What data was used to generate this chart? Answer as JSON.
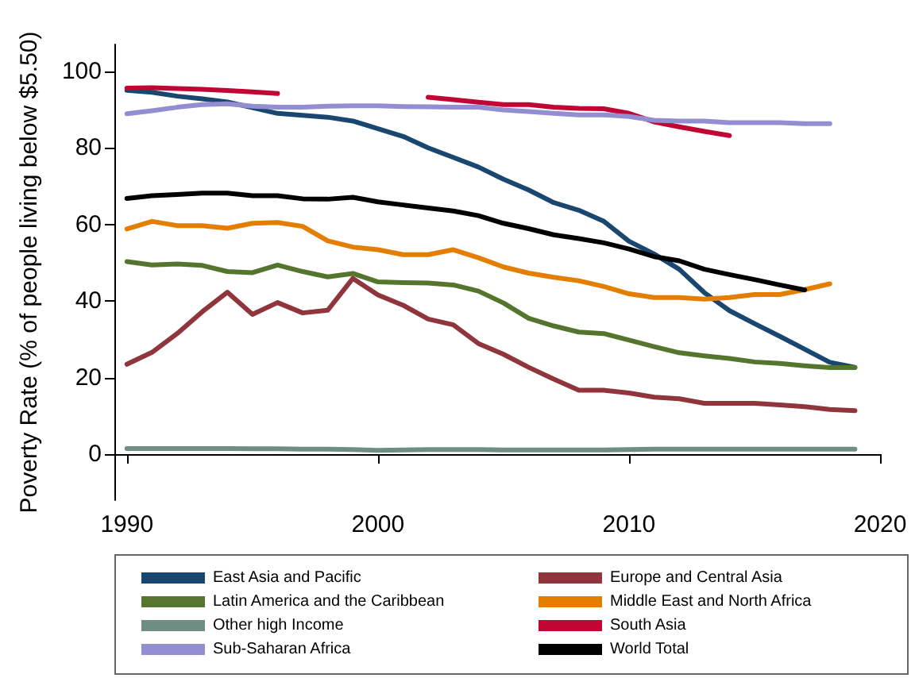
{
  "chart_data": {
    "type": "line",
    "ylabel": "Poverty Rate (% of people living below $5.50)",
    "x": [
      1990,
      1991,
      1992,
      1993,
      1994,
      1995,
      1996,
      1997,
      1998,
      1999,
      2000,
      2001,
      2002,
      2003,
      2004,
      2005,
      2006,
      2007,
      2008,
      2009,
      2010,
      2011,
      2012,
      2013,
      2014,
      2015,
      2016,
      2017,
      2018,
      2019
    ],
    "xlim": [
      1989.5,
      2020
    ],
    "xticks": [
      1990,
      2000,
      2010,
      2020
    ],
    "ylim": [
      -12,
      107
    ],
    "yticks": [
      0,
      20,
      40,
      60,
      80,
      100
    ],
    "grid": false,
    "legend": "bottom",
    "marker": "none",
    "line_style": "solid",
    "series": [
      {
        "name": "East Asia and Pacific",
        "color": "#1a476f",
        "values": [
          95,
          94.5,
          93.5,
          92.8,
          92,
          90.5,
          89,
          88.5,
          88,
          87,
          85,
          83,
          80,
          77.5,
          75,
          71.8,
          69,
          65.7,
          63.7,
          60.8,
          55.6,
          52.3,
          48.3,
          42.2,
          37.5,
          34.1,
          30.8,
          27.4,
          24,
          22.7
        ]
      },
      {
        "name": "Europe and Central Asia",
        "color": "#90353b",
        "values": [
          23.5,
          26.6,
          31.5,
          37.2,
          42.3,
          36.5,
          39.6,
          36.9,
          37.6,
          45.9,
          41.6,
          38.9,
          35.3,
          33.8,
          28.9,
          26.1,
          22.7,
          19.6,
          16.7,
          16.7,
          16,
          14.9,
          14.5,
          13.3,
          13.3,
          13.3,
          12.9,
          12.4,
          11.7,
          11.4
        ]
      },
      {
        "name": "Latin America and the Caribbean",
        "color": "#55752f",
        "values": [
          50.3,
          49.4,
          49.7,
          49.3,
          47.7,
          47.4,
          49.4,
          47.7,
          46.3,
          47.2,
          45,
          44.8,
          44.7,
          44.2,
          42.6,
          39.5,
          35.5,
          33.5,
          31.9,
          31.5,
          29.8,
          28.1,
          26.5,
          25.7,
          25,
          24.1,
          23.7,
          23.1,
          22.6,
          22.6
        ]
      },
      {
        "name": "Middle East and North Africa",
        "color": "#e37e00",
        "values": [
          58.8,
          60.8,
          59.7,
          59.7,
          59,
          60.3,
          60.5,
          59.5,
          55.7,
          54.1,
          53.4,
          52.1,
          52.1,
          53.4,
          51.3,
          48.9,
          47.3,
          46.2,
          45.3,
          43.8,
          41.9,
          40.9,
          40.9,
          40.5,
          40.9,
          41.7,
          41.7,
          43,
          44.5,
          null
        ]
      },
      {
        "name": "Other high Income",
        "color": "#6e8e84",
        "values": [
          1.5,
          1.5,
          1.5,
          1.5,
          1.5,
          1.4,
          1.4,
          1.3,
          1.3,
          1.2,
          1,
          1.1,
          1.2,
          1.2,
          1.2,
          1.1,
          1.1,
          1.1,
          1.1,
          1.1,
          1.2,
          1.3,
          1.3,
          1.3,
          1.3,
          1.3,
          1.3,
          1.3,
          1.3,
          1.3
        ]
      },
      {
        "name": "South Asia",
        "color": "#c10534",
        "values": [
          95.6,
          95.7,
          95.5,
          95.3,
          95,
          94.6,
          94.2,
          null,
          null,
          null,
          null,
          null,
          93.2,
          92.6,
          91.9,
          91.3,
          91.3,
          90.6,
          90.3,
          90.2,
          89,
          86.8,
          85.5,
          84.3,
          83.2,
          null,
          null,
          null,
          null,
          null
        ]
      },
      {
        "name": "Sub-Saharan Africa",
        "color": "#938dd2",
        "values": [
          88.9,
          89.7,
          90.6,
          91.3,
          91.5,
          90.9,
          90.6,
          90.6,
          90.9,
          91,
          91,
          90.8,
          90.7,
          90.6,
          90.6,
          89.9,
          89.5,
          89,
          88.6,
          88.6,
          88.2,
          87.2,
          87,
          87,
          86.6,
          86.6,
          86.6,
          86.3,
          86.3,
          null
        ]
      },
      {
        "name": "World Total",
        "color": "#000000",
        "values": [
          66.8,
          67.5,
          67.8,
          68.2,
          68.2,
          67.5,
          67.5,
          66.7,
          66.6,
          67.1,
          65.9,
          65.1,
          64.3,
          63.5,
          62.3,
          60.3,
          58.9,
          57.3,
          56.3,
          55.2,
          53.6,
          51.6,
          50.5,
          48.3,
          46.9,
          45.6,
          44.2,
          42.9,
          null,
          null
        ]
      }
    ]
  }
}
